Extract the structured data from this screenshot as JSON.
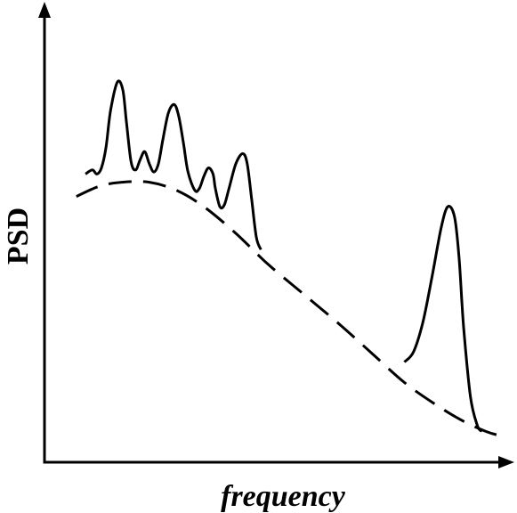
{
  "chart_data": {
    "type": "line",
    "title": "",
    "xlabel": "frequency",
    "ylabel": "PSD",
    "x_ticks": [],
    "y_ticks": [],
    "grid": false,
    "legend": "none",
    "axis_arrows": true,
    "colors": {
      "background": "#ffffff",
      "axes": "#000000",
      "lines": "#000000"
    },
    "series": [
      {
        "style": "dashed",
        "smooth": true,
        "points": [
          [
            0.07,
            0.65
          ],
          [
            0.12,
            0.675
          ],
          [
            0.17,
            0.685
          ],
          [
            0.23,
            0.685
          ],
          [
            0.29,
            0.665
          ],
          [
            0.35,
            0.625
          ],
          [
            0.42,
            0.56
          ],
          [
            0.49,
            0.485
          ],
          [
            0.57,
            0.41
          ],
          [
            0.65,
            0.335
          ],
          [
            0.72,
            0.265
          ],
          [
            0.79,
            0.195
          ],
          [
            0.86,
            0.14
          ],
          [
            0.92,
            0.1
          ],
          [
            0.97,
            0.075
          ],
          [
            1.0,
            0.065
          ]
        ]
      },
      {
        "style": "solid",
        "smooth": true,
        "points": [
          [
            0.09,
            0.705
          ],
          [
            0.105,
            0.715
          ],
          [
            0.115,
            0.705
          ],
          [
            0.125,
            0.72
          ],
          [
            0.135,
            0.77
          ],
          [
            0.145,
            0.86
          ],
          [
            0.16,
            0.93
          ],
          [
            0.172,
            0.91
          ],
          [
            0.18,
            0.83
          ],
          [
            0.19,
            0.735
          ],
          [
            0.2,
            0.715
          ],
          [
            0.21,
            0.74
          ],
          [
            0.22,
            0.76
          ],
          [
            0.23,
            0.73
          ],
          [
            0.24,
            0.71
          ],
          [
            0.25,
            0.73
          ],
          [
            0.26,
            0.79
          ],
          [
            0.272,
            0.855
          ],
          [
            0.285,
            0.875
          ],
          [
            0.295,
            0.845
          ],
          [
            0.305,
            0.78
          ],
          [
            0.315,
            0.71
          ],
          [
            0.33,
            0.665
          ],
          [
            0.34,
            0.67
          ],
          [
            0.35,
            0.7
          ],
          [
            0.36,
            0.72
          ],
          [
            0.37,
            0.705
          ],
          [
            0.375,
            0.67
          ],
          [
            0.385,
            0.625
          ],
          [
            0.395,
            0.63
          ],
          [
            0.405,
            0.67
          ],
          [
            0.42,
            0.73
          ],
          [
            0.435,
            0.755
          ],
          [
            0.445,
            0.73
          ],
          [
            0.455,
            0.64
          ],
          [
            0.465,
            0.55
          ],
          [
            0.475,
            0.52
          ]
        ]
      },
      {
        "style": "solid",
        "smooth": true,
        "points": [
          [
            0.79,
            0.245
          ],
          [
            0.81,
            0.27
          ],
          [
            0.83,
            0.34
          ],
          [
            0.85,
            0.45
          ],
          [
            0.87,
            0.57
          ],
          [
            0.885,
            0.625
          ],
          [
            0.9,
            0.6
          ],
          [
            0.91,
            0.5
          ],
          [
            0.92,
            0.33
          ],
          [
            0.935,
            0.16
          ],
          [
            0.95,
            0.09
          ],
          [
            0.96,
            0.075
          ]
        ]
      }
    ]
  }
}
